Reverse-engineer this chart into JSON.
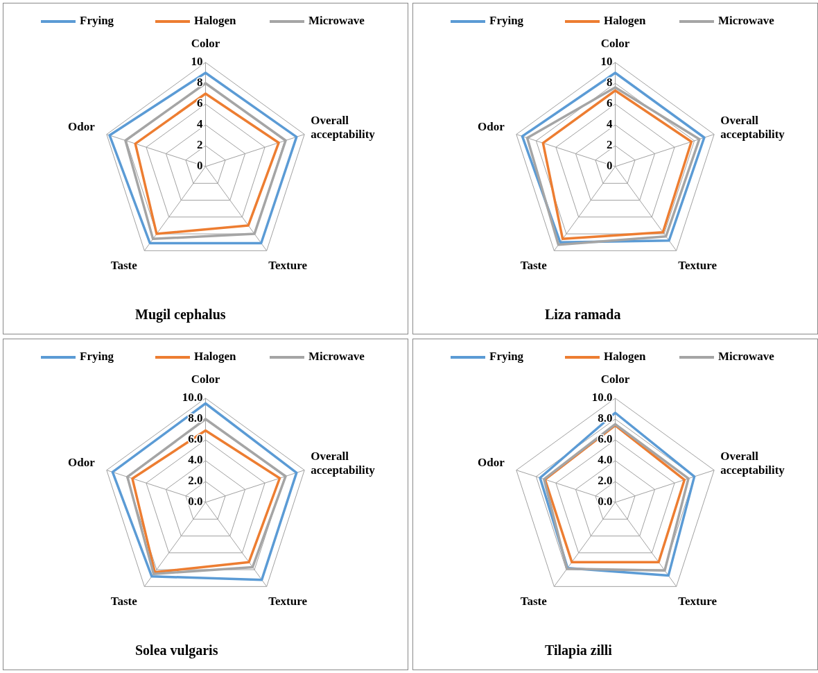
{
  "chart_data": [
    {
      "type": "radar",
      "title": "Mugil cephalus",
      "categories": [
        "Color",
        "Overall acceptability",
        "Texture",
        "Taste",
        "Odor"
      ],
      "ylim": [
        0,
        10
      ],
      "yticks": [
        0,
        2,
        4,
        6,
        8,
        10
      ],
      "legend": "top",
      "series": [
        {
          "name": "Frying",
          "color": "#5b9bd5",
          "values": [
            9,
            9.2,
            9.1,
            9.1,
            9.7
          ]
        },
        {
          "name": "Halogen",
          "color": "#ed7d31",
          "values": [
            7,
            7.4,
            7,
            8,
            7.1
          ]
        },
        {
          "name": "Microwave",
          "color": "#a5a5a5",
          "values": [
            8,
            8.1,
            8,
            8.6,
            8.1
          ]
        }
      ]
    },
    {
      "type": "radar",
      "title": "Liza ramada",
      "categories": [
        "Color",
        "Overall acceptability",
        "Texture",
        "Taste",
        "Odor"
      ],
      "ylim": [
        0,
        10
      ],
      "yticks": [
        0,
        2,
        4,
        6,
        8,
        10
      ],
      "legend": "top",
      "series": [
        {
          "name": "Frying",
          "color": "#5b9bd5",
          "values": [
            9,
            9,
            8.8,
            9,
            9.4
          ]
        },
        {
          "name": "Halogen",
          "color": "#ed7d31",
          "values": [
            7.3,
            7.7,
            7.8,
            8.6,
            7.3
          ]
        },
        {
          "name": "Microwave",
          "color": "#a5a5a5",
          "values": [
            7.6,
            8.5,
            8.3,
            9.3,
            8.9
          ]
        }
      ]
    },
    {
      "type": "radar",
      "title": "Solea vulgaris",
      "categories": [
        "Color",
        "Overall acceptability",
        "Texture",
        "Taste",
        "Odor"
      ],
      "ylim": [
        0,
        10
      ],
      "yticks": [
        {
          "value": 0,
          "label": "0.0"
        },
        {
          "value": 2,
          "label": "2.0"
        },
        {
          "value": 4,
          "label": "4.0"
        },
        {
          "value": 6,
          "label": "6.0"
        },
        {
          "value": 8,
          "label": "8.0"
        },
        {
          "value": 10,
          "label": "10.0"
        }
      ],
      "legend": "top",
      "series": [
        {
          "name": "Frying",
          "color": "#5b9bd5",
          "values": [
            9.5,
            9.2,
            9.2,
            8.8,
            9.4
          ]
        },
        {
          "name": "Halogen",
          "color": "#ed7d31",
          "values": [
            6.9,
            7.5,
            7.1,
            8.3,
            7.4
          ]
        },
        {
          "name": "Microwave",
          "color": "#a5a5a5",
          "values": [
            8,
            8.1,
            7.7,
            8.5,
            7.9
          ]
        }
      ]
    },
    {
      "type": "radar",
      "title": "Tilapia zilli",
      "categories": [
        "Color",
        "Overall acceptability",
        "Texture",
        "Taste",
        "Odor"
      ],
      "ylim": [
        0,
        10
      ],
      "yticks": [
        {
          "value": 0,
          "label": "0.0"
        },
        {
          "value": 2,
          "label": "2.0"
        },
        {
          "value": 4,
          "label": "4.0"
        },
        {
          "value": 6,
          "label": "6.0"
        },
        {
          "value": 8,
          "label": "8.0"
        },
        {
          "value": 10,
          "label": "10.0"
        }
      ],
      "legend": "top",
      "series": [
        {
          "name": "Frying",
          "color": "#5b9bd5",
          "values": [
            8.6,
            8,
            8.7,
            7.8,
            7.6
          ]
        },
        {
          "name": "Halogen",
          "color": "#ed7d31",
          "values": [
            7.4,
            7,
            7.1,
            7.1,
            7.1
          ]
        },
        {
          "name": "Microwave",
          "color": "#a5a5a5",
          "values": [
            7.5,
            7.4,
            8.1,
            7.9,
            7.2
          ]
        }
      ]
    }
  ]
}
